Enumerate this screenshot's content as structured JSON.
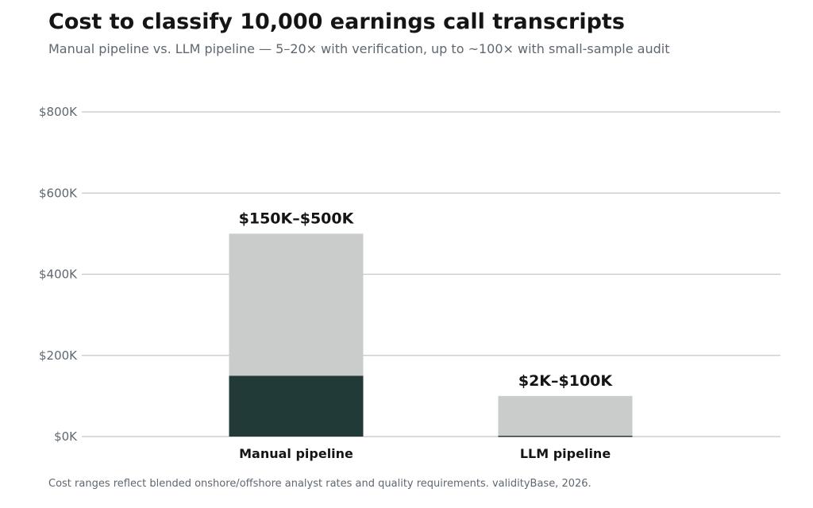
{
  "header": {
    "title": "Cost to classify 10,000 earnings call transcripts",
    "subtitle": "Manual pipeline vs. LLM pipeline — 5–20× with verification, up to ~100× with small-sample audit"
  },
  "footnote": "Cost ranges reflect blended onshore/offshore analyst rates and quality requirements. validityBase, 2026.",
  "colors": {
    "low_segment": "#223a37",
    "range_segment": "#cacccb",
    "gridline": "#c4c6c8"
  },
  "chart_data": {
    "type": "bar",
    "stacked": true,
    "categories": [
      "Manual pipeline",
      "LLM pipeline"
    ],
    "series": [
      {
        "values": [
          150000,
          2000
        ]
      },
      {
        "values": [
          350000,
          98000
        ]
      }
    ],
    "data_labels": [
      "$150K–$500K",
      "$2K–$100K"
    ],
    "ylim": [
      0,
      800000
    ],
    "y_ticks": [
      0,
      200000,
      400000,
      600000,
      800000
    ],
    "y_tick_labels": [
      "$0K",
      "$200K",
      "$400K",
      "$600K",
      "$800K"
    ],
    "grid": true,
    "xlabel": "",
    "ylabel": ""
  }
}
